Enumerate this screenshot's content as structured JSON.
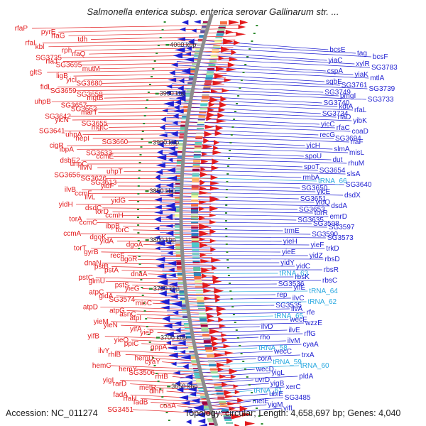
{
  "title": "Salmonella enterica subsp. enterica serovar Gallinarum str. ...",
  "accession": "Accession: NC_011274",
  "summary": "Topology: circular; Length: 4,658,697 bp; Genes: 4,040",
  "colors": {
    "forward_strand": "#e31a1c",
    "reverse_strand": "#1f1fd1",
    "trna": "#2aa9e0",
    "backbone": "#8c8c8c",
    "ticks": "#2e8b2e"
  },
  "kbp_labels": [
    {
      "label": "4000 kbp",
      "kbp": 4000
    },
    {
      "label": "3950 kbp",
      "kbp": 3950
    },
    {
      "label": "3900 kbp",
      "kbp": 3900
    },
    {
      "label": "3850 kbp",
      "kbp": 3850
    },
    {
      "label": "3800 kbp",
      "kbp": 3800
    },
    {
      "label": "3750 kbp",
      "kbp": 3750
    },
    {
      "label": "3700 kbp",
      "kbp": 3700
    },
    {
      "label": "3650 kbp",
      "kbp": 3650
    }
  ],
  "forward_genes": [
    "rfaP",
    "pyrE",
    "rfaG",
    "tdh",
    "rfaI",
    "kbl",
    "rph",
    "rfaQ",
    "SG3735",
    "rfaJ",
    "SG3695",
    "mutM",
    "gltS",
    "ligB",
    "yicI",
    "SG3680",
    "fidL",
    "SG3659",
    "SG3658",
    "mgtB",
    "uhpB",
    "SG3657",
    "SG3662",
    "marT",
    "SG3642",
    "yicN",
    "SG3655",
    "mgtC",
    "SG3641",
    "uhpA",
    "nepI",
    "SG3660",
    "cigR",
    "ibpA",
    "SG3633",
    "ccmE",
    "dsbE2",
    "uhpC",
    "ilvN",
    "uhpT",
    "SG3656",
    "SG3626",
    "SG3613",
    "yidF",
    "ilvB",
    "ccmF",
    "ilvL",
    "yidG",
    "yidH",
    "dsdC",
    "torD",
    "ccmH",
    "torA",
    "ccmC",
    "ibpB",
    "torC",
    "ccmA",
    "dgoK",
    "yidA",
    "dgoA",
    "torT",
    "gyrB",
    "recF",
    "dgoR",
    "dnaN",
    "pstB",
    "pstA",
    "dnaA",
    "pstC",
    "glmU",
    "pstS",
    "yieG",
    "atpC",
    "gidA",
    "SG3574",
    "mioC",
    "atpD",
    "atpG",
    "asnC",
    "atpI",
    "yieM",
    "yieN",
    "yifA",
    "yieP",
    "yifB",
    "yieO",
    "ppiC",
    "gppA",
    "ilvY",
    "rhlB",
    "hemD",
    "cyaY",
    "hemC",
    "hemY",
    "SG3506",
    "rhtB",
    "yigI",
    "rarD",
    "metR",
    "dlhH",
    "fadA",
    "rfaH",
    "fadB",
    "coaA",
    "SG3451"
  ],
  "reverse_genes": [
    "bcsE",
    "tag",
    "bcsF",
    "yiaC",
    "xylR",
    "SG3783",
    "cspA",
    "yiaK",
    "mtlA",
    "sgbE",
    "SG3761",
    "SG3739",
    "SG3749",
    "pmgI",
    "SG3733",
    "SG3740",
    "kdtA",
    "rfaL",
    "SG3734",
    "rfaD",
    "yibK",
    "yicC",
    "rfaC",
    "coaD",
    "recG",
    "SG3694",
    "rfaF",
    "yicH",
    "slmA",
    "misL",
    "spoU",
    "dut",
    "rhuM",
    "spoT",
    "SG3654",
    "slsA",
    "rmbA",
    "tRNA_66",
    "SG3640",
    "SG3650",
    "yicE",
    "dsdX",
    "SG3651",
    "yidQ",
    "dsdA",
    "SG3653",
    "torR",
    "emrD",
    "SG3635",
    "SG3598",
    "SG3597",
    "trmE",
    "SG3590",
    "SG3573",
    "yieH",
    "yieF",
    "trkD",
    "yieE",
    "yidZ",
    "rbsD",
    "yidY",
    "yidC",
    "rbsR",
    "tRNA_63",
    "rbsK",
    "rbsC",
    "SG3536",
    "yifE",
    "tRNA_64",
    "rep",
    "ilvC",
    "tRNA_62",
    "SG3535",
    "ilvA",
    "rfe",
    "tRNA_65",
    "wecE",
    "wzzE",
    "ilvD",
    "ilvE",
    "rffG",
    "rho",
    "ilvM",
    "cyaA",
    "tRNA_58",
    "wecC",
    "trxA",
    "corA",
    "tRNA_59",
    "tRNA_60",
    "wecD",
    "yigL",
    "pldA",
    "uvrD",
    "yigB",
    "xerC",
    "tRNA_61",
    "ubiE",
    "SG3485",
    "metE",
    "yigM",
    "yifL"
  ]
}
